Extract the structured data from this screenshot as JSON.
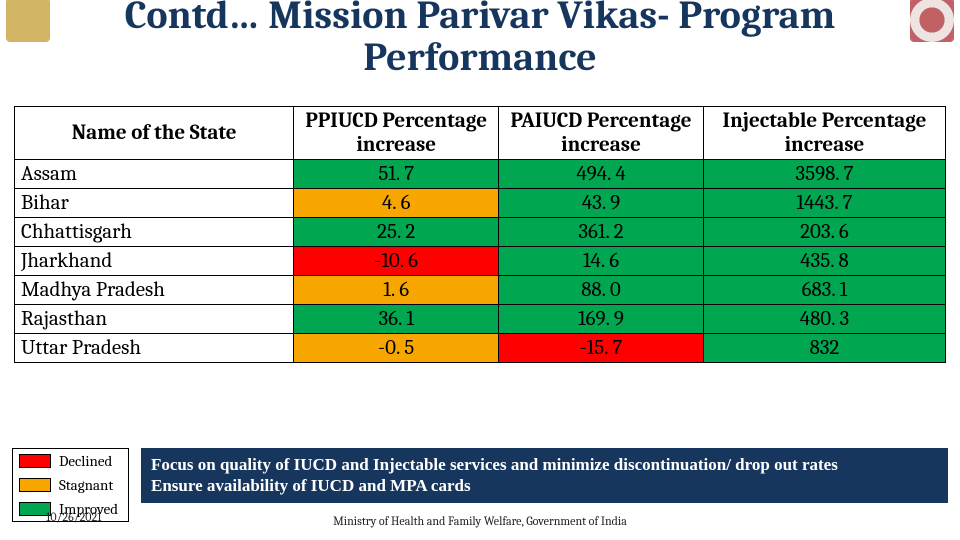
{
  "title_line1": "Contd… Mission Parivar Vikas- Program",
  "title_line2": "Performance",
  "title_color": "#17365d",
  "colors": {
    "improved": "#00a650",
    "stagnant": "#f7a600",
    "declined": "#ff0000",
    "note_bg": "#17365d"
  },
  "table": {
    "headers": [
      "Name of the State",
      "PPIUCD Percentage increase",
      "PAIUCD Percentage increase",
      "Injectable Percentage increase"
    ],
    "col_widths": [
      "30%",
      "22%",
      "22%",
      "26%"
    ],
    "rows": [
      {
        "state": "Assam",
        "vals": [
          "51. 7",
          "494. 4",
          "3598. 7"
        ],
        "colors": [
          "improved",
          "improved",
          "improved"
        ]
      },
      {
        "state": "Bihar",
        "vals": [
          "4. 6",
          "43. 9",
          "1443. 7"
        ],
        "colors": [
          "stagnant",
          "improved",
          "improved"
        ]
      },
      {
        "state": "Chhattisgarh",
        "vals": [
          "25. 2",
          "361. 2",
          "203. 6"
        ],
        "colors": [
          "improved",
          "improved",
          "improved"
        ]
      },
      {
        "state": "Jharkhand",
        "vals": [
          "-10. 6",
          "14. 6",
          "435. 8"
        ],
        "colors": [
          "declined",
          "improved",
          "improved"
        ]
      },
      {
        "state": "Madhya Pradesh",
        "vals": [
          "1. 6",
          "88. 0",
          "683. 1"
        ],
        "colors": [
          "stagnant",
          "improved",
          "improved"
        ]
      },
      {
        "state": "Rajasthan",
        "vals": [
          "36. 1",
          "169. 9",
          "480. 3"
        ],
        "colors": [
          "improved",
          "improved",
          "improved"
        ]
      },
      {
        "state": "Uttar Pradesh",
        "vals": [
          "-0. 5",
          "-15. 7",
          "832"
        ],
        "colors": [
          "stagnant",
          "declined",
          "improved"
        ]
      }
    ]
  },
  "legend": [
    {
      "label": "Declined",
      "color": "declined"
    },
    {
      "label": "Stagnant",
      "color": "stagnant"
    },
    {
      "label": "Improved",
      "color": "improved"
    }
  ],
  "note_line1": "Focus on quality of IUCD and Injectable services and minimize discontinuation/ drop out rates",
  "note_line2": "Ensure availability of IUCD and MPA cards",
  "footer": "Ministry of Health and Family Welfare, Government of India",
  "date": "10/26/2021"
}
